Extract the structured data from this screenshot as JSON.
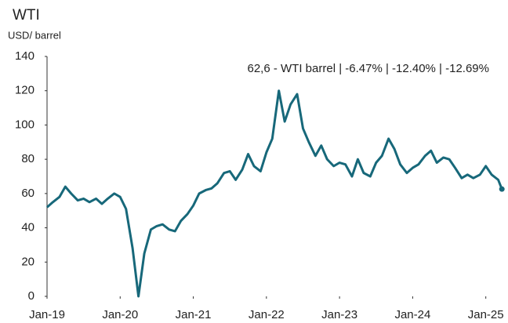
{
  "chart_data": {
    "type": "line",
    "title": "WTI",
    "y_label": "USD/ barrel",
    "annotation": "62,6 - WTI barrel | -6.47% | -12.40% | -12.69%",
    "x": [
      2019.0,
      2019.08,
      2019.17,
      2019.25,
      2019.33,
      2019.42,
      2019.5,
      2019.58,
      2019.67,
      2019.75,
      2019.83,
      2019.92,
      2020.0,
      2020.08,
      2020.17,
      2020.25,
      2020.33,
      2020.42,
      2020.5,
      2020.58,
      2020.67,
      2020.75,
      2020.83,
      2020.92,
      2021.0,
      2021.08,
      2021.17,
      2021.25,
      2021.33,
      2021.42,
      2021.5,
      2021.58,
      2021.67,
      2021.75,
      2021.83,
      2021.92,
      2022.0,
      2022.08,
      2022.17,
      2022.25,
      2022.33,
      2022.42,
      2022.5,
      2022.58,
      2022.67,
      2022.75,
      2022.83,
      2022.92,
      2023.0,
      2023.08,
      2023.17,
      2023.25,
      2023.33,
      2023.42,
      2023.5,
      2023.58,
      2023.67,
      2023.75,
      2023.83,
      2023.92,
      2024.0,
      2024.08,
      2024.17,
      2024.25,
      2024.33,
      2024.42,
      2024.5,
      2024.58,
      2024.67,
      2024.75,
      2024.83,
      2024.92,
      2025.0,
      2025.08,
      2025.17,
      2025.22
    ],
    "series": [
      {
        "name": "WTI barrel",
        "color": "#17687a",
        "values": [
          52,
          55,
          58,
          64,
          60,
          56,
          57,
          55,
          57,
          54,
          57,
          60,
          58,
          51,
          28,
          0,
          25,
          39,
          41,
          42,
          39,
          38,
          44,
          48,
          53,
          60,
          62,
          63,
          66,
          72,
          73,
          68,
          74,
          83,
          76,
          73,
          84,
          92,
          120,
          102,
          112,
          118,
          98,
          90,
          82,
          88,
          80,
          76,
          78,
          77,
          70,
          80,
          72,
          70,
          78,
          82,
          92,
          86,
          77,
          72,
          75,
          77,
          82,
          85,
          78,
          81,
          80,
          75,
          69,
          71,
          69,
          71,
          76,
          71,
          68,
          62.6
        ]
      }
    ],
    "xlim": [
      2019,
      2025.25
    ],
    "xticks": [
      {
        "value": 2019,
        "label": "Jan-19"
      },
      {
        "value": 2020,
        "label": "Jan-20"
      },
      {
        "value": 2021,
        "label": "Jan-21"
      },
      {
        "value": 2022,
        "label": "Jan-22"
      },
      {
        "value": 2023,
        "label": "Jan-23"
      },
      {
        "value": 2024,
        "label": "Jan-24"
      },
      {
        "value": 2025,
        "label": "Jan-25"
      }
    ],
    "ylim": [
      0,
      140
    ],
    "yticks": [
      0,
      20,
      40,
      60,
      80,
      100,
      120,
      140
    ],
    "grid": false
  }
}
